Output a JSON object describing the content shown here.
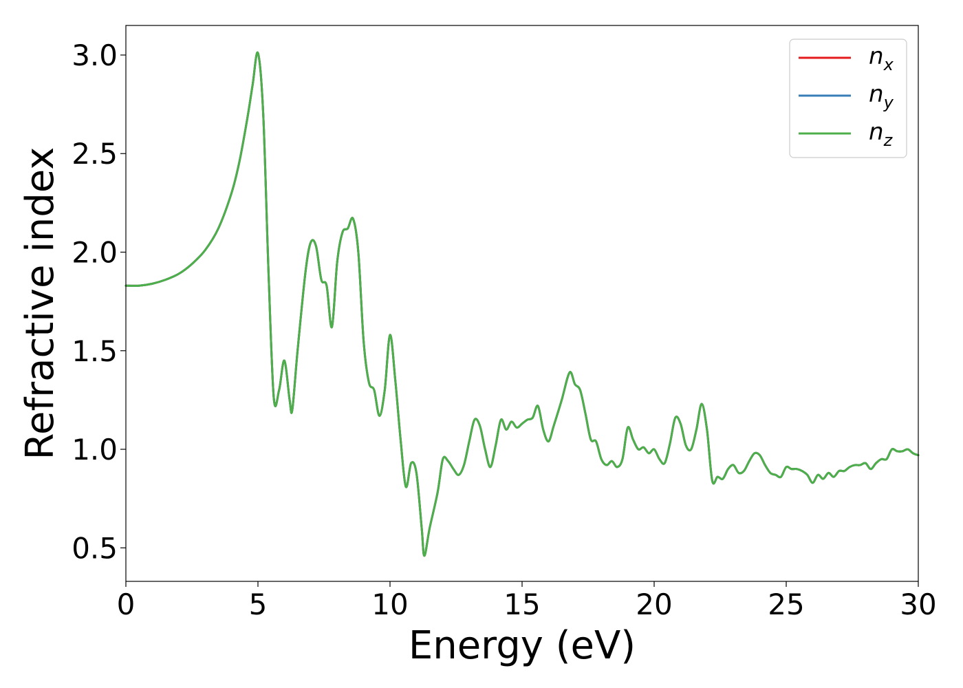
{
  "chart_data": {
    "type": "line",
    "title": "",
    "xlabel": "Energy (eV)",
    "ylabel": "Refractive index",
    "xlim": [
      0,
      30
    ],
    "ylim": [
      0.33,
      3.15
    ],
    "xticks": [
      {
        "value": 0,
        "label": "0"
      },
      {
        "value": 5,
        "label": "5"
      },
      {
        "value": 10,
        "label": "10"
      },
      {
        "value": 15,
        "label": "15"
      },
      {
        "value": 20,
        "label": "20"
      },
      {
        "value": 25,
        "label": "25"
      },
      {
        "value": 30,
        "label": "30"
      }
    ],
    "yticks": [
      {
        "value": 0.5,
        "label": "0.5"
      },
      {
        "value": 1.0,
        "label": "1.0"
      },
      {
        "value": 1.5,
        "label": "1.5"
      },
      {
        "value": 2.0,
        "label": "2.0"
      },
      {
        "value": 2.5,
        "label": "2.5"
      },
      {
        "value": 3.0,
        "label": "3.0"
      }
    ],
    "grid": false,
    "legend_position": "top-right",
    "x": [
      0,
      0.5,
      1,
      1.5,
      2,
      2.5,
      3,
      3.5,
      4,
      4.3,
      4.6,
      4.8,
      5,
      5.2,
      5.4,
      5.6,
      5.8,
      6,
      6.2,
      6.3,
      6.5,
      6.8,
      7,
      7.2,
      7.4,
      7.6,
      7.8,
      8,
      8.2,
      8.4,
      8.6,
      8.8,
      9,
      9.2,
      9.4,
      9.6,
      9.8,
      10,
      10.2,
      10.4,
      10.6,
      10.8,
      11,
      11.2,
      11.3,
      11.5,
      11.8,
      12,
      12.2,
      12.4,
      12.6,
      12.8,
      13,
      13.2,
      13.4,
      13.6,
      13.8,
      14,
      14.2,
      14.4,
      14.6,
      14.8,
      15,
      15.2,
      15.4,
      15.6,
      15.8,
      16,
      16.2,
      16.5,
      16.8,
      17,
      17.2,
      17.4,
      17.6,
      17.8,
      18,
      18.2,
      18.4,
      18.6,
      18.8,
      19,
      19.2,
      19.4,
      19.6,
      19.8,
      20,
      20.2,
      20.4,
      20.6,
      20.8,
      21,
      21.2,
      21.4,
      21.6,
      21.8,
      22,
      22.2,
      22.4,
      22.6,
      22.8,
      23,
      23.2,
      23.4,
      23.6,
      23.8,
      24,
      24.2,
      24.4,
      24.6,
      24.8,
      25,
      25.2,
      25.4,
      25.6,
      25.8,
      26,
      26.2,
      26.4,
      26.6,
      26.8,
      27,
      27.2,
      27.4,
      27.6,
      27.8,
      28,
      28.2,
      28.4,
      28.6,
      28.8,
      29,
      29.2,
      29.4,
      29.6,
      29.8,
      30
    ],
    "series": [
      {
        "name": "n_x",
        "label_base": "n",
        "label_sub": "x",
        "color": "#e41a1c",
        "values": [
          1.83,
          1.83,
          1.84,
          1.86,
          1.89,
          1.94,
          2.01,
          2.12,
          2.3,
          2.46,
          2.68,
          2.85,
          3.01,
          2.7,
          1.9,
          1.26,
          1.3,
          1.45,
          1.25,
          1.2,
          1.5,
          1.9,
          2.05,
          2.03,
          1.86,
          1.83,
          1.62,
          1.95,
          2.1,
          2.12,
          2.17,
          2.0,
          1.55,
          1.34,
          1.3,
          1.17,
          1.3,
          1.58,
          1.35,
          1.05,
          0.81,
          0.93,
          0.88,
          0.6,
          0.46,
          0.6,
          0.78,
          0.95,
          0.94,
          0.9,
          0.87,
          0.92,
          1.04,
          1.15,
          1.12,
          1.0,
          0.91,
          1.02,
          1.15,
          1.1,
          1.14,
          1.11,
          1.13,
          1.15,
          1.16,
          1.22,
          1.1,
          1.04,
          1.12,
          1.25,
          1.39,
          1.33,
          1.3,
          1.18,
          1.05,
          1.04,
          0.95,
          0.92,
          0.94,
          0.91,
          0.95,
          1.11,
          1.05,
          1.0,
          1.01,
          0.98,
          1.0,
          0.95,
          0.93,
          1.03,
          1.16,
          1.13,
          1.02,
          1.0,
          1.1,
          1.23,
          1.1,
          0.84,
          0.86,
          0.85,
          0.9,
          0.92,
          0.88,
          0.89,
          0.94,
          0.98,
          0.97,
          0.92,
          0.88,
          0.87,
          0.86,
          0.91,
          0.9,
          0.9,
          0.89,
          0.87,
          0.83,
          0.87,
          0.85,
          0.88,
          0.86,
          0.89,
          0.89,
          0.91,
          0.92,
          0.92,
          0.93,
          0.9,
          0.93,
          0.95,
          0.95,
          1.0,
          0.99,
          0.99,
          1.0,
          0.98,
          0.97
        ]
      },
      {
        "name": "n_y",
        "label_base": "n",
        "label_sub": "y",
        "color": "#377eb8",
        "values": [
          1.83,
          1.83,
          1.84,
          1.86,
          1.89,
          1.94,
          2.01,
          2.12,
          2.3,
          2.46,
          2.68,
          2.85,
          3.01,
          2.7,
          1.9,
          1.26,
          1.3,
          1.45,
          1.25,
          1.2,
          1.5,
          1.9,
          2.05,
          2.03,
          1.86,
          1.83,
          1.62,
          1.95,
          2.1,
          2.12,
          2.17,
          2.0,
          1.55,
          1.34,
          1.3,
          1.17,
          1.3,
          1.58,
          1.35,
          1.05,
          0.81,
          0.93,
          0.88,
          0.6,
          0.46,
          0.6,
          0.78,
          0.95,
          0.94,
          0.9,
          0.87,
          0.92,
          1.04,
          1.15,
          1.12,
          1.0,
          0.91,
          1.02,
          1.15,
          1.1,
          1.14,
          1.11,
          1.13,
          1.15,
          1.16,
          1.22,
          1.1,
          1.04,
          1.12,
          1.25,
          1.39,
          1.33,
          1.3,
          1.18,
          1.05,
          1.04,
          0.95,
          0.92,
          0.94,
          0.91,
          0.95,
          1.11,
          1.05,
          1.0,
          1.01,
          0.98,
          1.0,
          0.95,
          0.93,
          1.03,
          1.16,
          1.13,
          1.02,
          1.0,
          1.1,
          1.23,
          1.1,
          0.84,
          0.86,
          0.85,
          0.9,
          0.92,
          0.88,
          0.89,
          0.94,
          0.98,
          0.97,
          0.92,
          0.88,
          0.87,
          0.86,
          0.91,
          0.9,
          0.9,
          0.89,
          0.87,
          0.83,
          0.87,
          0.85,
          0.88,
          0.86,
          0.89,
          0.89,
          0.91,
          0.92,
          0.92,
          0.93,
          0.9,
          0.93,
          0.95,
          0.95,
          1.0,
          0.99,
          0.99,
          1.0,
          0.98,
          0.97
        ]
      },
      {
        "name": "n_z",
        "label_base": "n",
        "label_sub": "z",
        "color": "#4daf4a",
        "values": [
          1.83,
          1.83,
          1.84,
          1.86,
          1.89,
          1.94,
          2.01,
          2.12,
          2.3,
          2.46,
          2.68,
          2.85,
          3.01,
          2.7,
          1.9,
          1.26,
          1.3,
          1.45,
          1.25,
          1.2,
          1.5,
          1.9,
          2.05,
          2.03,
          1.86,
          1.83,
          1.62,
          1.95,
          2.1,
          2.12,
          2.17,
          2.0,
          1.55,
          1.34,
          1.3,
          1.17,
          1.3,
          1.58,
          1.35,
          1.05,
          0.81,
          0.93,
          0.88,
          0.6,
          0.46,
          0.6,
          0.78,
          0.95,
          0.94,
          0.9,
          0.87,
          0.92,
          1.04,
          1.15,
          1.12,
          1.0,
          0.91,
          1.02,
          1.15,
          1.1,
          1.14,
          1.11,
          1.13,
          1.15,
          1.16,
          1.22,
          1.1,
          1.04,
          1.12,
          1.25,
          1.39,
          1.33,
          1.3,
          1.18,
          1.05,
          1.04,
          0.95,
          0.92,
          0.94,
          0.91,
          0.95,
          1.11,
          1.05,
          1.0,
          1.01,
          0.98,
          1.0,
          0.95,
          0.93,
          1.03,
          1.16,
          1.13,
          1.02,
          1.0,
          1.1,
          1.23,
          1.1,
          0.84,
          0.86,
          0.85,
          0.9,
          0.92,
          0.88,
          0.89,
          0.94,
          0.98,
          0.97,
          0.92,
          0.88,
          0.87,
          0.86,
          0.91,
          0.9,
          0.9,
          0.89,
          0.87,
          0.83,
          0.87,
          0.85,
          0.88,
          0.86,
          0.89,
          0.89,
          0.91,
          0.92,
          0.92,
          0.93,
          0.9,
          0.93,
          0.95,
          0.95,
          1.0,
          0.99,
          0.99,
          1.0,
          0.98,
          0.97
        ]
      }
    ]
  }
}
